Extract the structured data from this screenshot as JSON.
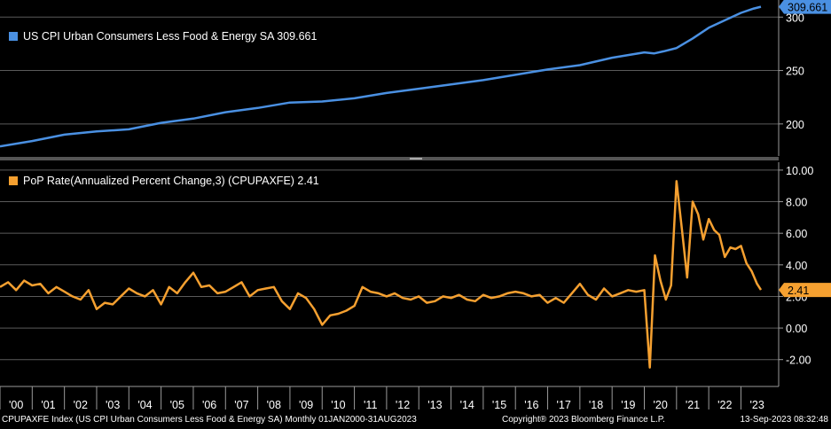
{
  "colors": {
    "background": "#000000",
    "grid": "#5a5a5a",
    "axis": "#9a9a9a",
    "top_series": "#4a90e2",
    "bottom_series": "#f5a030",
    "separator": "#8a8a8a"
  },
  "chart_data": [
    {
      "type": "line",
      "series_name": "US CPI Urban Consumers Less Food & Energy SA 309.661",
      "last_value_label": "309.661",
      "y_ticks": [
        "300",
        "250",
        "200"
      ],
      "y_tick_values": [
        300,
        250,
        200
      ],
      "ylim": [
        170,
        316
      ],
      "x_range": [
        2000.0,
        2023.62
      ],
      "grid": true,
      "x": [
        2000.0,
        2001.0,
        2002.0,
        2003.0,
        2004.0,
        2005.0,
        2006.0,
        2007.0,
        2008.0,
        2009.0,
        2010.0,
        2011.0,
        2012.0,
        2013.0,
        2014.0,
        2015.0,
        2016.0,
        2017.0,
        2018.0,
        2019.0,
        2020.0,
        2020.3,
        2020.6,
        2021.0,
        2021.5,
        2022.0,
        2022.5,
        2023.0,
        2023.4,
        2023.62
      ],
      "values": [
        179,
        184,
        190,
        193,
        195,
        201,
        205,
        211,
        215,
        220,
        221,
        224,
        229,
        233,
        237,
        241,
        246,
        251,
        255,
        262,
        267,
        266,
        268,
        271,
        280,
        290,
        297,
        304,
        308,
        309.661
      ]
    },
    {
      "type": "line",
      "series_name": "PoP Rate(Annualized Percent Change,3) (CPUPAXFE) 2.41",
      "last_value_label": "2.41",
      "y_ticks": [
        "10.00",
        "8.00",
        "6.00",
        "4.00",
        "2.00",
        "0.00",
        "-2.00"
      ],
      "y_tick_values": [
        10,
        8,
        6,
        4,
        2,
        0,
        -2
      ],
      "ylim": [
        -3.7,
        10.5
      ],
      "x_range": [
        2000.0,
        2023.62
      ],
      "grid": true,
      "x_tick_labels": [
        "'00",
        "'01",
        "'02",
        "'03",
        "'04",
        "'05",
        "'06",
        "'07",
        "'08",
        "'09",
        "'10",
        "'11",
        "'12",
        "'13",
        "'14",
        "'15",
        "'16",
        "'17",
        "'18",
        "'19",
        "'20",
        "'21",
        "'22",
        "'23"
      ],
      "x": [
        2000.0,
        2000.25,
        2000.5,
        2000.75,
        2001.0,
        2001.25,
        2001.5,
        2001.75,
        2002.0,
        2002.25,
        2002.5,
        2002.75,
        2003.0,
        2003.25,
        2003.5,
        2003.75,
        2004.0,
        2004.25,
        2004.5,
        2004.75,
        2005.0,
        2005.25,
        2005.5,
        2005.75,
        2006.0,
        2006.25,
        2006.5,
        2006.75,
        2007.0,
        2007.25,
        2007.5,
        2007.75,
        2008.0,
        2008.25,
        2008.5,
        2008.75,
        2009.0,
        2009.25,
        2009.5,
        2009.75,
        2010.0,
        2010.25,
        2010.5,
        2010.75,
        2011.0,
        2011.25,
        2011.5,
        2011.75,
        2012.0,
        2012.25,
        2012.5,
        2012.75,
        2013.0,
        2013.25,
        2013.5,
        2013.75,
        2014.0,
        2014.25,
        2014.5,
        2014.75,
        2015.0,
        2015.25,
        2015.5,
        2015.75,
        2016.0,
        2016.25,
        2016.5,
        2016.75,
        2017.0,
        2017.25,
        2017.5,
        2017.75,
        2018.0,
        2018.25,
        2018.5,
        2018.75,
        2019.0,
        2019.25,
        2019.5,
        2019.75,
        2020.0,
        2020.17,
        2020.33,
        2020.5,
        2020.67,
        2020.83,
        2021.0,
        2021.17,
        2021.33,
        2021.5,
        2021.67,
        2021.83,
        2022.0,
        2022.17,
        2022.33,
        2022.5,
        2022.67,
        2022.83,
        2023.0,
        2023.17,
        2023.33,
        2023.5,
        2023.62
      ],
      "values": [
        2.6,
        2.9,
        2.4,
        3.0,
        2.7,
        2.8,
        2.2,
        2.6,
        2.3,
        2.0,
        1.8,
        2.4,
        1.2,
        1.6,
        1.5,
        2.0,
        2.5,
        2.2,
        2.0,
        2.4,
        1.5,
        2.6,
        2.2,
        2.9,
        3.5,
        2.6,
        2.7,
        2.2,
        2.3,
        2.6,
        2.9,
        2.0,
        2.4,
        2.5,
        2.6,
        1.7,
        1.2,
        2.2,
        1.9,
        1.2,
        0.2,
        0.8,
        0.9,
        1.1,
        1.4,
        2.6,
        2.3,
        2.2,
        2.0,
        2.2,
        1.9,
        1.8,
        2.0,
        1.6,
        1.7,
        2.0,
        1.9,
        2.1,
        1.8,
        1.7,
        2.1,
        1.9,
        2.0,
        2.2,
        2.3,
        2.2,
        2.0,
        2.1,
        1.6,
        1.9,
        1.6,
        2.2,
        2.8,
        2.1,
        1.8,
        2.5,
        2.0,
        2.2,
        2.4,
        2.3,
        2.4,
        -2.5,
        4.6,
        3.0,
        1.8,
        2.7,
        9.3,
        6.2,
        3.2,
        8.0,
        7.2,
        5.6,
        6.9,
        6.2,
        5.9,
        4.5,
        5.1,
        5.0,
        5.2,
        4.1,
        3.6,
        2.8,
        2.41
      ]
    }
  ],
  "footer": {
    "left": "CPUPAXFE Index (US CPI Urban Consumers Less Food & Energy SA)  Monthly 01JAN2000-31AUG2023",
    "center": "Copyright® 2023 Bloomberg Finance L.P.",
    "right": "13-Sep-2023 08:32:48"
  }
}
